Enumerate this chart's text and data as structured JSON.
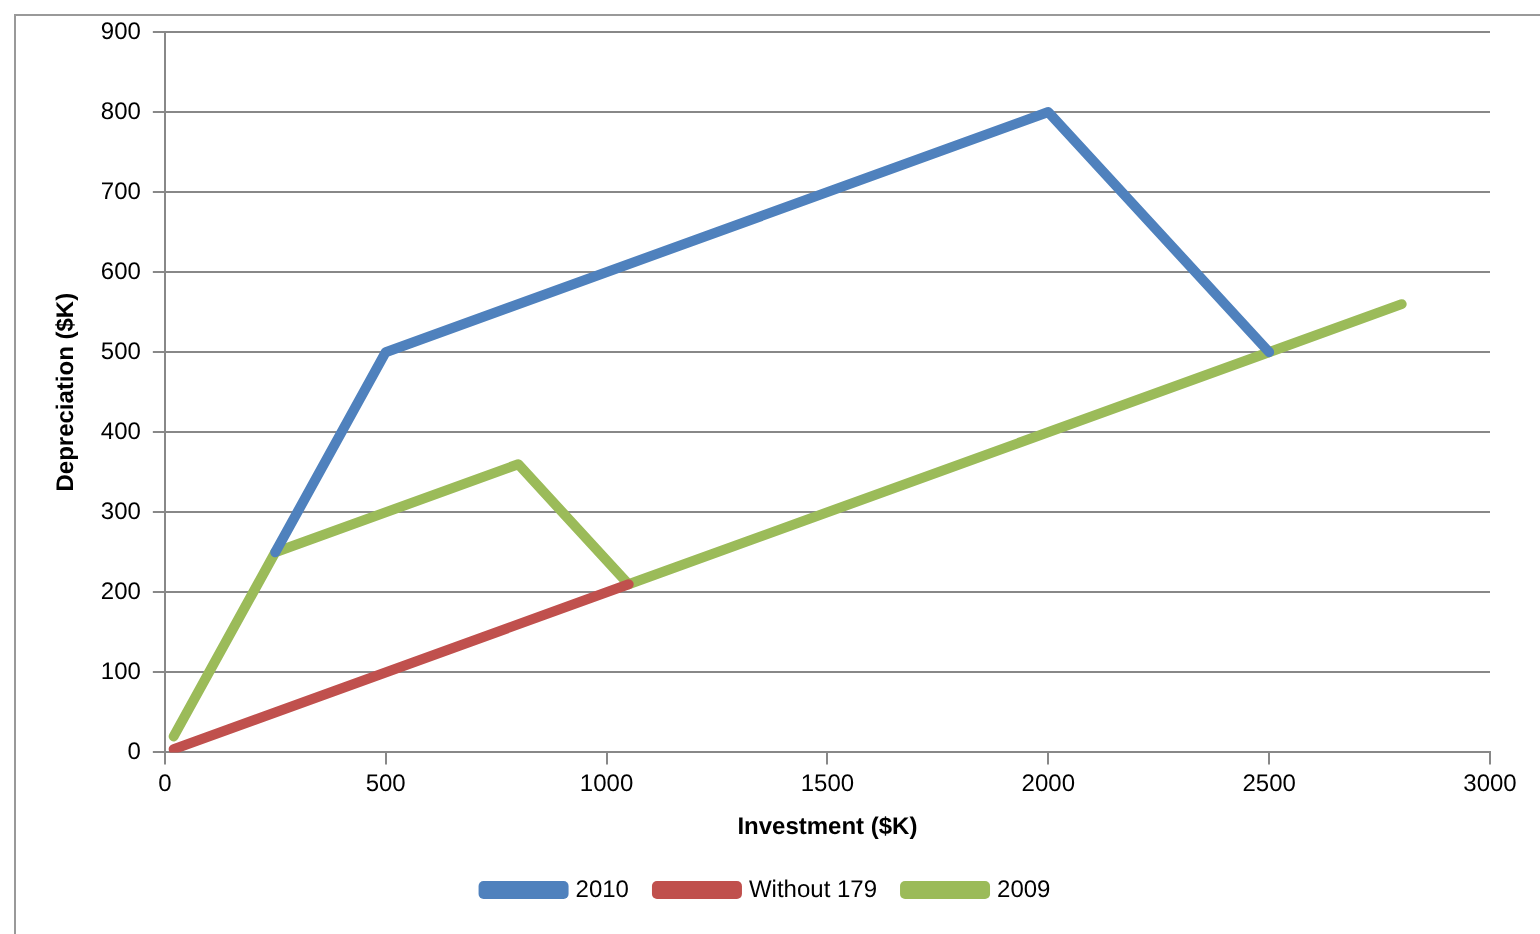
{
  "chart_data": {
    "type": "line",
    "xlabel": "Investment ($K)",
    "ylabel": "Depreciation ($K)",
    "xlim": [
      0,
      3000
    ],
    "xticks": [
      0,
      500,
      1000,
      1500,
      2000,
      2500,
      3000
    ],
    "ylim": [
      0,
      900
    ],
    "yticks": [
      0,
      100,
      200,
      300,
      400,
      500,
      600,
      700,
      800,
      900
    ],
    "grid": "y",
    "legend": "bottom",
    "marker": "none",
    "line_style": "solid",
    "series": [
      {
        "name": "2010",
        "color": "#4f81bd",
        "x": [
          250,
          500,
          2000,
          2500
        ],
        "values": [
          250,
          500,
          800,
          500
        ]
      },
      {
        "name": "Without 179",
        "color": "#c0504d",
        "x": [
          20,
          1050
        ],
        "values": [
          4,
          210
        ]
      },
      {
        "name": "2009",
        "color": "#9bbb59",
        "x": [
          20,
          250,
          800,
          1050,
          2800
        ],
        "values": [
          20,
          250,
          360,
          210,
          560
        ]
      }
    ]
  }
}
